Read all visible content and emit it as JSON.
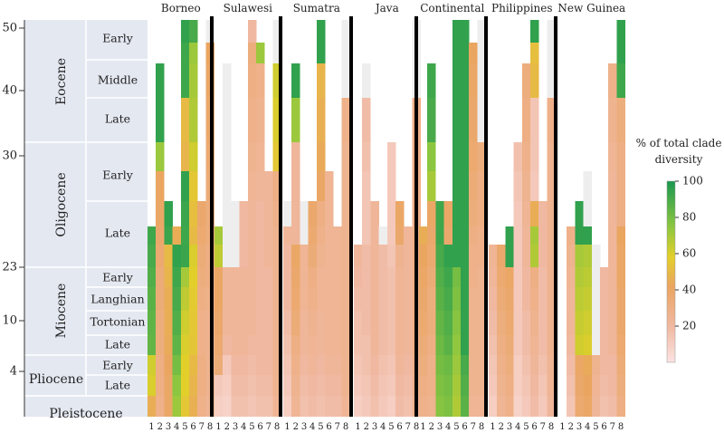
{
  "chart_data": {
    "type": "heatmap",
    "title": "",
    "regions": [
      "Borneo",
      "Sulawesi",
      "Sumatra",
      "Java",
      "Continental",
      "Philippines",
      "New Guinea"
    ],
    "clades": [
      "1",
      "2",
      "3",
      "4",
      "5",
      "6",
      "7",
      "8"
    ],
    "y_ticks": [
      "50",
      "40",
      "30",
      "23",
      "10",
      "4"
    ],
    "epochs": [
      "Eocene",
      "Oligocene",
      "Miocene",
      "Pliocene",
      "Pleistocene"
    ],
    "periods": [
      "Early",
      "Middle",
      "Late",
      "Early",
      "Late",
      "Early",
      "Langhian",
      "Tortonian",
      "Late",
      "Early",
      "Late",
      "Pleistocene"
    ],
    "row_labels": [
      "Eocene Early",
      "Eocene Middle",
      "Eocene Late (a)",
      "Eocene Late (b)",
      "Oligocene Early (a)",
      "Oligocene Early (b)",
      "Oligocene Late (a)",
      "Oligocene Late (b)",
      "Miocene Early (a)",
      "Miocene Early (b)",
      "Miocene Langhian",
      "Miocene Tortonian",
      "Miocene Late",
      "Pliocene Early",
      "Pliocene Late",
      "Pleistocene"
    ],
    "colorbar": {
      "title_line1": "% of total clade",
      "title_line2": "diversity",
      "ticks": [
        "100",
        "80",
        "60",
        "40",
        "20"
      ],
      "range": [
        0,
        100
      ]
    },
    "values": {
      "Borneo": [
        [
          -1,
          -1,
          -1,
          -1,
          95,
          90,
          -1,
          2
        ],
        [
          -1,
          -1,
          -1,
          -1,
          92,
          72,
          -1,
          42
        ],
        [
          -1,
          95,
          -1,
          -1,
          92,
          70,
          -1,
          40
        ],
        [
          -1,
          95,
          -1,
          -1,
          50,
          68,
          -1,
          38
        ],
        [
          -1,
          72,
          -1,
          -1,
          48,
          62,
          -1,
          36
        ],
        [
          -1,
          42,
          -1,
          -1,
          95,
          55,
          -1,
          34
        ],
        [
          -1,
          40,
          95,
          -1,
          93,
          52,
          38,
          32
        ],
        [
          92,
          38,
          93,
          45,
          92,
          50,
          36,
          32
        ],
        [
          90,
          36,
          50,
          95,
          93,
          60,
          34,
          30
        ],
        [
          88,
          34,
          48,
          92,
          70,
          58,
          32,
          30
        ],
        [
          86,
          34,
          45,
          90,
          65,
          56,
          30,
          28
        ],
        [
          85,
          32,
          45,
          88,
          62,
          55,
          28,
          26
        ],
        [
          84,
          32,
          44,
          85,
          60,
          54,
          28,
          26
        ],
        [
          62,
          30,
          42,
          80,
          58,
          50,
          30,
          26
        ],
        [
          60,
          30,
          40,
          75,
          58,
          48,
          30,
          26
        ],
        [
          45,
          28,
          40,
          72,
          55,
          46,
          28,
          24
        ]
      ],
      "Sulawesi": [
        [
          -1,
          -1,
          -1,
          -1,
          20,
          -1,
          -1,
          2
        ],
        [
          -1,
          -1,
          -1,
          -1,
          32,
          72,
          -1,
          2
        ],
        [
          -1,
          2,
          -1,
          -1,
          30,
          28,
          -1,
          62
        ],
        [
          -1,
          2,
          -1,
          -1,
          28,
          26,
          -1,
          60
        ],
        [
          -1,
          2,
          -1,
          -1,
          26,
          24,
          -1,
          55
        ],
        [
          -1,
          2,
          -1,
          -1,
          24,
          22,
          22,
          30
        ],
        [
          -1,
          2,
          2,
          20,
          22,
          20,
          22,
          28
        ],
        [
          70,
          2,
          2,
          20,
          22,
          20,
          22,
          26
        ],
        [
          65,
          2,
          2,
          20,
          22,
          20,
          22,
          26
        ],
        [
          40,
          22,
          22,
          22,
          22,
          20,
          20,
          26
        ],
        [
          40,
          22,
          22,
          22,
          22,
          20,
          20,
          26
        ],
        [
          38,
          22,
          22,
          22,
          22,
          20,
          20,
          26
        ],
        [
          36,
          20,
          22,
          22,
          20,
          20,
          20,
          26
        ],
        [
          34,
          12,
          20,
          20,
          18,
          20,
          20,
          26
        ],
        [
          12,
          10,
          18,
          18,
          16,
          18,
          18,
          26
        ],
        [
          10,
          8,
          16,
          16,
          14,
          16,
          16,
          24
        ]
      ],
      "Sumatra": [
        [
          -1,
          -1,
          -1,
          -1,
          95,
          -1,
          -1,
          2
        ],
        [
          -1,
          -1,
          -1,
          -1,
          95,
          -1,
          -1,
          2
        ],
        [
          -1,
          95,
          -1,
          -1,
          48,
          -1,
          -1,
          2
        ],
        [
          -1,
          72,
          -1,
          -1,
          46,
          -1,
          -1,
          28
        ],
        [
          -1,
          22,
          -1,
          -1,
          44,
          -1,
          -1,
          26
        ],
        [
          -1,
          22,
          -1,
          -1,
          40,
          24,
          -1,
          26
        ],
        [
          2,
          22,
          2,
          38,
          30,
          24,
          -1,
          26
        ],
        [
          22,
          22,
          2,
          36,
          28,
          24,
          24,
          26
        ],
        [
          20,
          40,
          24,
          34,
          26,
          24,
          24,
          26
        ],
        [
          20,
          38,
          24,
          30,
          24,
          24,
          24,
          26
        ],
        [
          20,
          36,
          24,
          28,
          24,
          24,
          24,
          26
        ],
        [
          18,
          34,
          22,
          26,
          22,
          24,
          24,
          26
        ],
        [
          16,
          30,
          22,
          24,
          22,
          24,
          24,
          26
        ],
        [
          14,
          28,
          20,
          22,
          20,
          22,
          22,
          26
        ],
        [
          12,
          26,
          18,
          20,
          18,
          20,
          20,
          26
        ],
        [
          10,
          24,
          16,
          18,
          16,
          18,
          18,
          24
        ]
      ],
      "Java": [
        [
          -1,
          -1,
          -1,
          -1,
          -1,
          -1,
          -1,
          2
        ],
        [
          -1,
          -1,
          -1,
          -1,
          -1,
          -1,
          -1,
          2
        ],
        [
          -1,
          2,
          -1,
          -1,
          -1,
          -1,
          -1,
          2
        ],
        [
          -1,
          18,
          -1,
          -1,
          -1,
          -1,
          -1,
          28
        ],
        [
          -1,
          16,
          -1,
          -1,
          12,
          -1,
          -1,
          28
        ],
        [
          -1,
          14,
          -1,
          -1,
          12,
          -1,
          -1,
          28
        ],
        [
          -1,
          14,
          22,
          -1,
          12,
          40,
          -1,
          28
        ],
        [
          -1,
          14,
          22,
          2,
          12,
          38,
          22,
          28
        ],
        [
          22,
          18,
          22,
          18,
          14,
          26,
          22,
          28
        ],
        [
          20,
          18,
          22,
          18,
          16,
          24,
          22,
          28
        ],
        [
          18,
          18,
          22,
          18,
          16,
          24,
          22,
          28
        ],
        [
          16,
          18,
          22,
          18,
          16,
          24,
          22,
          28
        ],
        [
          16,
          16,
          22,
          18,
          16,
          24,
          22,
          28
        ],
        [
          14,
          16,
          20,
          16,
          14,
          22,
          20,
          26
        ],
        [
          12,
          14,
          18,
          14,
          12,
          20,
          18,
          26
        ],
        [
          10,
          12,
          16,
          12,
          10,
          18,
          16,
          24
        ]
      ],
      "Continental": [
        [
          -1,
          -1,
          -1,
          -1,
          95,
          95,
          -1,
          2
        ],
        [
          -1,
          -1,
          -1,
          -1,
          95,
          95,
          42,
          2
        ],
        [
          -1,
          92,
          -1,
          -1,
          95,
          95,
          40,
          2
        ],
        [
          -1,
          90,
          -1,
          -1,
          95,
          95,
          38,
          2
        ],
        [
          -1,
          75,
          -1,
          -1,
          95,
          95,
          36,
          32
        ],
        [
          -1,
          70,
          -1,
          -1,
          95,
          95,
          34,
          30
        ],
        [
          -1,
          40,
          92,
          40,
          95,
          95,
          32,
          30
        ],
        [
          45,
          38,
          92,
          38,
          95,
          95,
          30,
          28
        ],
        [
          42,
          36,
          90,
          95,
          95,
          95,
          28,
          28
        ],
        [
          40,
          34,
          88,
          92,
          80,
          95,
          28,
          26
        ],
        [
          38,
          32,
          86,
          90,
          78,
          95,
          26,
          26
        ],
        [
          36,
          32,
          84,
          88,
          76,
          95,
          26,
          26
        ],
        [
          34,
          30,
          82,
          86,
          74,
          95,
          26,
          26
        ],
        [
          32,
          28,
          80,
          82,
          72,
          90,
          26,
          26
        ],
        [
          30,
          28,
          78,
          80,
          70,
          88,
          26,
          26
        ],
        [
          28,
          26,
          76,
          78,
          68,
          86,
          24,
          24
        ]
      ],
      "Philippines": [
        [
          -1,
          -1,
          -1,
          -1,
          -1,
          95,
          -1,
          2
        ],
        [
          -1,
          -1,
          -1,
          -1,
          -1,
          52,
          -1,
          2
        ],
        [
          -1,
          -1,
          -1,
          -1,
          32,
          50,
          -1,
          2
        ],
        [
          -1,
          -1,
          -1,
          -1,
          30,
          14,
          -1,
          28
        ],
        [
          -1,
          -1,
          -1,
          16,
          28,
          14,
          -1,
          26
        ],
        [
          -1,
          -1,
          -1,
          14,
          26,
          12,
          -1,
          26
        ],
        [
          -1,
          -1,
          -1,
          12,
          24,
          45,
          20,
          26
        ],
        [
          -1,
          -1,
          95,
          12,
          22,
          70,
          20,
          26
        ],
        [
          24,
          38,
          95,
          12,
          22,
          68,
          20,
          26
        ],
        [
          22,
          36,
          40,
          12,
          20,
          30,
          18,
          26
        ],
        [
          20,
          34,
          38,
          12,
          20,
          28,
          18,
          26
        ],
        [
          18,
          32,
          36,
          12,
          18,
          26,
          18,
          26
        ],
        [
          16,
          30,
          34,
          12,
          18,
          24,
          18,
          26
        ],
        [
          14,
          28,
          32,
          10,
          16,
          22,
          16,
          24
        ],
        [
          12,
          26,
          30,
          10,
          14,
          20,
          14,
          24
        ],
        [
          10,
          24,
          28,
          8,
          12,
          18,
          12,
          22
        ]
      ],
      "New Guinea": [
        [
          -1,
          -1,
          -1,
          -1,
          -1,
          -1,
          -1,
          95
        ],
        [
          -1,
          -1,
          -1,
          -1,
          -1,
          -1,
          -1,
          95
        ],
        [
          -1,
          -1,
          -1,
          -1,
          -1,
          -1,
          28,
          92
        ],
        [
          -1,
          -1,
          -1,
          -1,
          -1,
          -1,
          26,
          32
        ],
        [
          -1,
          -1,
          -1,
          -1,
          -1,
          -1,
          24,
          30
        ],
        [
          -1,
          -1,
          -1,
          2,
          -1,
          -1,
          22,
          30
        ],
        [
          -1,
          -1,
          95,
          2,
          -1,
          -1,
          22,
          30
        ],
        [
          -1,
          28,
          95,
          95,
          -1,
          -1,
          22,
          42
        ],
        [
          -1,
          26,
          70,
          68,
          2,
          -1,
          22,
          40
        ],
        [
          -1,
          24,
          68,
          66,
          2,
          20,
          22,
          40
        ],
        [
          -1,
          22,
          66,
          64,
          2,
          20,
          22,
          38
        ],
        [
          -1,
          22,
          64,
          62,
          2,
          20,
          22,
          38
        ],
        [
          -1,
          20,
          62,
          60,
          2,
          20,
          22,
          36
        ],
        [
          -1,
          18,
          40,
          44,
          26,
          20,
          20,
          34
        ],
        [
          -1,
          16,
          38,
          42,
          24,
          18,
          20,
          32
        ],
        [
          -1,
          14,
          36,
          40,
          22,
          16,
          18,
          30
        ]
      ]
    }
  }
}
